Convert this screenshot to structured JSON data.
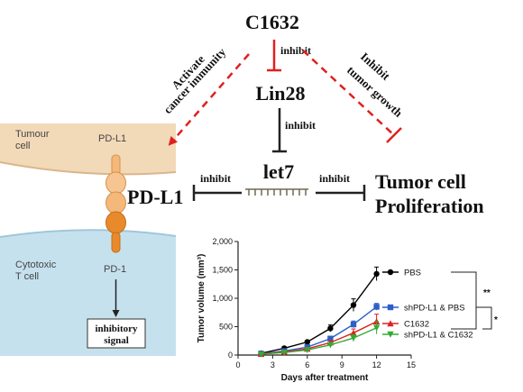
{
  "diagram": {
    "top_node": "C1632",
    "mid_node": "Lin28",
    "center_node": "let7",
    "left_target": "PD-L1",
    "right_target_line1": "Tumor cell",
    "right_target_line2": "Proliferation",
    "edge_c1632_lin28": "inhibit",
    "edge_lin28_let7": "inhibit",
    "edge_let7_pdl1": "inhibit",
    "edge_let7_prolif": "inhibit",
    "left_arrow_line1": "Activate",
    "left_arrow_line2": "cancer immunity",
    "right_arrow_line1": "Inhibit",
    "right_arrow_line2": "tumor growth"
  },
  "cell_panel": {
    "tumour_label_line1": "Tumour",
    "tumour_label_line2": "cell",
    "pdl1_label": "PD-L1",
    "cytotoxic_label_line1": "Cytotoxic",
    "cytotoxic_label_line2": "T cell",
    "pd1_label": "PD-1",
    "signal_line1": "inhibitory",
    "signal_line2": "signal",
    "colors": {
      "tumour": "#f2d9b8",
      "tcell": "#c6e1ee",
      "receptor": "#f4b87a",
      "receptor_dark": "#e3821e",
      "pd1": "#e88a2c"
    }
  },
  "chart_data": {
    "type": "line",
    "xlabel": "Days after treatment",
    "ylabel": "Tumor volume (mm³)",
    "xlim": [
      0,
      15
    ],
    "ylim": [
      0,
      2000
    ],
    "xticks": [
      0,
      3,
      6,
      9,
      12,
      15
    ],
    "yticks": [
      0,
      500,
      1000,
      1500,
      2000
    ],
    "ytick_labels": [
      "0",
      "500",
      "1,000",
      "1,500",
      "2,000"
    ],
    "legend_placement": "right",
    "series": [
      {
        "name": "PBS",
        "color": "#000000",
        "marker": "circle",
        "x": [
          2,
          4,
          6,
          8,
          10,
          12
        ],
        "y": [
          30,
          120,
          230,
          470,
          880,
          1430
        ],
        "err": [
          10,
          20,
          30,
          60,
          110,
          120
        ]
      },
      {
        "name": "shPD-L1 & PBS",
        "color": "#2c5fc8",
        "marker": "square",
        "x": [
          2,
          4,
          6,
          8,
          10,
          12
        ],
        "y": [
          25,
          70,
          140,
          290,
          540,
          850
        ],
        "err": [
          8,
          15,
          25,
          40,
          60,
          60
        ]
      },
      {
        "name": "C1632",
        "color": "#e02020",
        "marker": "triangle",
        "x": [
          2,
          4,
          6,
          8,
          10,
          12
        ],
        "y": [
          20,
          55,
          110,
          220,
          390,
          590
        ],
        "err": [
          8,
          12,
          20,
          40,
          70,
          130
        ]
      },
      {
        "name": "shPD-L1 & C1632",
        "color": "#33aa33",
        "marker": "triangle-down",
        "x": [
          2,
          4,
          6,
          8,
          10,
          12
        ],
        "y": [
          15,
          45,
          90,
          180,
          300,
          480
        ],
        "err": [
          6,
          10,
          20,
          35,
          60,
          110
        ]
      }
    ],
    "annotations": [
      "**",
      "*"
    ]
  }
}
